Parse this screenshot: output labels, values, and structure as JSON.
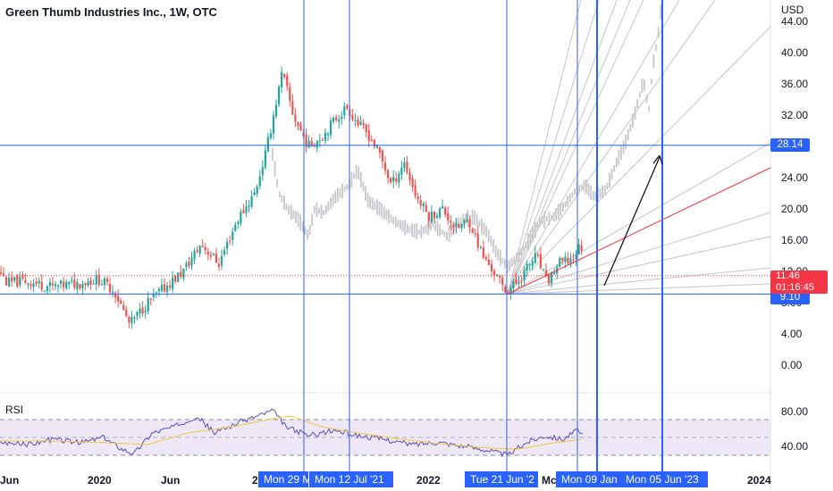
{
  "title": "Green Thumb Industries Inc., 1W, OTC",
  "currency": "USD",
  "rsi_label": "RSI",
  "colors": {
    "up": "#26a69a",
    "down": "#ef5350",
    "ghost": "#c8c8cc",
    "line": "#2962ff",
    "fan": "#c5c5c8",
    "red_line": "#f23645",
    "rsi": "#5b4fb8",
    "rsi_ma": "#f5c842"
  },
  "price_labels": {
    "h1": "28.14",
    "h2": "9.10"
  },
  "last_price": {
    "price": "11.46",
    "timer": "01:16:45"
  },
  "x_ticks": [
    {
      "label": "Jun"
    },
    {
      "label": "2020"
    },
    {
      "label": "Jun"
    },
    {
      "label": "2"
    },
    {
      "label": "2022"
    },
    {
      "label": "Mc"
    },
    {
      "label": "2024"
    }
  ],
  "v_tags": [
    {
      "label": "Mon 29 M"
    },
    {
      "label": "Mon 12 Jul '21"
    },
    {
      "label": "Tue 21 Jun '2"
    },
    {
      "label": "Mon 09 Jan"
    },
    {
      "label": "Mon 05 Jun '23"
    }
  ],
  "chart_data": [
    {
      "type": "candlestick",
      "title": "Green Thumb Industries Inc., 1W, OTC",
      "y_unit": "USD",
      "y_ticks": [
        "44.00",
        "40.00",
        "36.00",
        "32.00",
        "28.00",
        "24.00",
        "20.00",
        "16.00",
        "12.00",
        "8.00",
        "4.00",
        "0.00"
      ],
      "ylim": [
        0,
        45
      ],
      "horizontal_lines": [
        28.14,
        9.1
      ],
      "last_price": 11.46,
      "anchors": [
        {
          "x": 0,
          "price": 12.0
        },
        {
          "x": 8,
          "price": 10.5
        },
        {
          "x": 28,
          "price": 10.8
        },
        {
          "x": 58,
          "price": 10.0
        },
        {
          "x": 88,
          "price": 10.5
        },
        {
          "x": 110,
          "price": 11.0
        },
        {
          "x": 128,
          "price": 9.5
        },
        {
          "x": 145,
          "price": 5.2
        },
        {
          "x": 165,
          "price": 8.0
        },
        {
          "x": 185,
          "price": 10.0
        },
        {
          "x": 205,
          "price": 12.0
        },
        {
          "x": 225,
          "price": 15.5
        },
        {
          "x": 245,
          "price": 13.0
        },
        {
          "x": 265,
          "price": 18.5
        },
        {
          "x": 285,
          "price": 22.0
        },
        {
          "x": 298,
          "price": 27.5
        },
        {
          "x": 306,
          "price": 32.0
        },
        {
          "x": 316,
          "price": 37.5
        },
        {
          "x": 328,
          "price": 32.0
        },
        {
          "x": 345,
          "price": 28.0
        },
        {
          "x": 362,
          "price": 29.5
        },
        {
          "x": 375,
          "price": 31.5
        },
        {
          "x": 388,
          "price": 33.0
        },
        {
          "x": 400,
          "price": 31.0
        },
        {
          "x": 412,
          "price": 29.5
        },
        {
          "x": 425,
          "price": 27.0
        },
        {
          "x": 438,
          "price": 23.0
        },
        {
          "x": 452,
          "price": 26.0
        },
        {
          "x": 466,
          "price": 21.5
        },
        {
          "x": 480,
          "price": 19.0
        },
        {
          "x": 495,
          "price": 20.0
        },
        {
          "x": 510,
          "price": 17.5
        },
        {
          "x": 525,
          "price": 18.5
        },
        {
          "x": 540,
          "price": 14.0
        },
        {
          "x": 552,
          "price": 12.0
        },
        {
          "x": 565,
          "price": 9.5
        },
        {
          "x": 578,
          "price": 10.5
        },
        {
          "x": 590,
          "price": 12.5
        },
        {
          "x": 600,
          "price": 14.0
        },
        {
          "x": 612,
          "price": 10.5
        },
        {
          "x": 625,
          "price": 13.0
        },
        {
          "x": 640,
          "price": 13.5
        },
        {
          "x": 650,
          "price": 15.5
        },
        {
          "x": 654,
          "price": 13.0
        }
      ],
      "ghost_anchors": [
        {
          "x": 305,
          "price": 27.0
        },
        {
          "x": 312,
          "price": 22.0
        },
        {
          "x": 322,
          "price": 20.0
        },
        {
          "x": 335,
          "price": 18.5
        },
        {
          "x": 345,
          "price": 16.5
        },
        {
          "x": 352,
          "price": 20.0
        },
        {
          "x": 362,
          "price": 19.5
        },
        {
          "x": 375,
          "price": 21.5
        },
        {
          "x": 390,
          "price": 23.0
        },
        {
          "x": 400,
          "price": 25.0
        },
        {
          "x": 412,
          "price": 21.0
        },
        {
          "x": 425,
          "price": 20.0
        },
        {
          "x": 440,
          "price": 18.5
        },
        {
          "x": 455,
          "price": 17.5
        },
        {
          "x": 470,
          "price": 17.0
        },
        {
          "x": 485,
          "price": 18.0
        },
        {
          "x": 500,
          "price": 16.5
        },
        {
          "x": 515,
          "price": 18.5
        },
        {
          "x": 530,
          "price": 19.0
        },
        {
          "x": 545,
          "price": 17.0
        },
        {
          "x": 555,
          "price": 14.5
        },
        {
          "x": 568,
          "price": 12.5
        },
        {
          "x": 580,
          "price": 14.0
        },
        {
          "x": 592,
          "price": 16.0
        },
        {
          "x": 605,
          "price": 18.5
        },
        {
          "x": 620,
          "price": 19.0
        },
        {
          "x": 632,
          "price": 20.5
        },
        {
          "x": 645,
          "price": 22.5
        },
        {
          "x": 655,
          "price": 23.0
        },
        {
          "x": 665,
          "price": 21.5
        },
        {
          "x": 678,
          "price": 22.5
        },
        {
          "x": 690,
          "price": 26.0
        },
        {
          "x": 700,
          "price": 28.5
        },
        {
          "x": 710,
          "price": 32.0
        },
        {
          "x": 720,
          "price": 36.5
        },
        {
          "x": 726,
          "price": 32.5
        },
        {
          "x": 730,
          "price": 38.0
        },
        {
          "x": 736,
          "price": 42.0
        },
        {
          "x": 740,
          "price": 46.0
        }
      ]
    },
    {
      "type": "line",
      "title": "RSI",
      "y_ticks": [
        "80.00",
        "40.00"
      ],
      "levels": [
        70,
        50,
        30
      ],
      "anchors": [
        {
          "x": 0,
          "value": 45
        },
        {
          "x": 30,
          "value": 42
        },
        {
          "x": 60,
          "value": 48
        },
        {
          "x": 90,
          "value": 44
        },
        {
          "x": 115,
          "value": 50
        },
        {
          "x": 135,
          "value": 38
        },
        {
          "x": 150,
          "value": 32
        },
        {
          "x": 170,
          "value": 55
        },
        {
          "x": 195,
          "value": 62
        },
        {
          "x": 220,
          "value": 74
        },
        {
          "x": 240,
          "value": 55
        },
        {
          "x": 265,
          "value": 66
        },
        {
          "x": 290,
          "value": 75
        },
        {
          "x": 305,
          "value": 80
        },
        {
          "x": 320,
          "value": 62
        },
        {
          "x": 345,
          "value": 52
        },
        {
          "x": 375,
          "value": 58
        },
        {
          "x": 400,
          "value": 52
        },
        {
          "x": 430,
          "value": 48
        },
        {
          "x": 460,
          "value": 42
        },
        {
          "x": 490,
          "value": 45
        },
        {
          "x": 520,
          "value": 40
        },
        {
          "x": 545,
          "value": 36
        },
        {
          "x": 568,
          "value": 30
        },
        {
          "x": 590,
          "value": 45
        },
        {
          "x": 610,
          "value": 52
        },
        {
          "x": 630,
          "value": 48
        },
        {
          "x": 645,
          "value": 58
        },
        {
          "x": 652,
          "value": 52
        }
      ],
      "ma_anchors": [
        {
          "x": 0,
          "value": 46
        },
        {
          "x": 60,
          "value": 46
        },
        {
          "x": 120,
          "value": 44
        },
        {
          "x": 165,
          "value": 42
        },
        {
          "x": 210,
          "value": 55
        },
        {
          "x": 260,
          "value": 62
        },
        {
          "x": 300,
          "value": 70
        },
        {
          "x": 325,
          "value": 74
        },
        {
          "x": 360,
          "value": 62
        },
        {
          "x": 400,
          "value": 55
        },
        {
          "x": 450,
          "value": 48
        },
        {
          "x": 500,
          "value": 42
        },
        {
          "x": 550,
          "value": 38
        },
        {
          "x": 580,
          "value": 37
        },
        {
          "x": 620,
          "value": 44
        },
        {
          "x": 652,
          "value": 48
        }
      ]
    }
  ]
}
